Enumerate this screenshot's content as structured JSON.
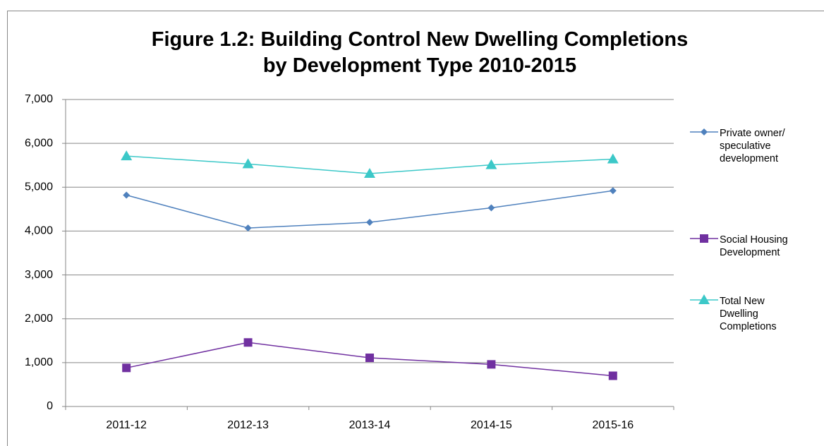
{
  "chart_data": {
    "type": "line",
    "title": "Figure 1.2: Building Control New Dwelling Completions by Development Type 2010-2015",
    "categories": [
      "2011-12",
      "2012-13",
      "2013-14",
      "2014-15",
      "2015-16"
    ],
    "series": [
      {
        "name": "Private owner/ speculative development",
        "color": "#4f81bd",
        "marker": "diamond",
        "values": [
          4820,
          4070,
          4200,
          4530,
          4920
        ]
      },
      {
        "name": "Social Housing Development",
        "color": "#7030a0",
        "marker": "square",
        "values": [
          880,
          1460,
          1110,
          960,
          700
        ]
      },
      {
        "name": "Total New Dwelling Completions",
        "color": "#3cc8c8",
        "marker": "triangle",
        "values": [
          5710,
          5530,
          5310,
          5510,
          5640
        ]
      }
    ],
    "ylim": [
      0,
      7000
    ],
    "yticks": [
      0,
      {
        "value": 1000,
        "label": "1,000"
      },
      {
        "value": 2000,
        "label": "2,000"
      },
      {
        "value": 3000,
        "label": "3,000"
      },
      {
        "value": 4000,
        "label": "4,000"
      },
      {
        "value": 5000,
        "label": "5,000"
      },
      {
        "value": 6000,
        "label": "6,000"
      },
      {
        "value": 7000,
        "label": "7,000"
      }
    ],
    "grid": true,
    "legend": "right"
  }
}
